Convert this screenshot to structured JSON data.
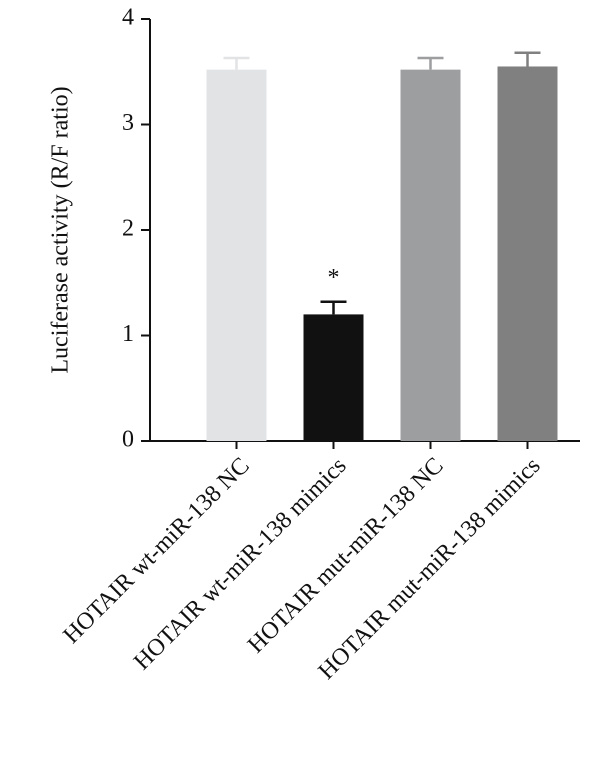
{
  "chart_data": {
    "type": "bar",
    "y_label": "Luciferase activity (R/F ratio)",
    "categories": [
      "HOTAIR wt-miR-138 NC",
      "HOTAIR wt-miR-138 mimics",
      "HOTAIR mut-miR-138 NC",
      "HOTAIR mut-miR-138 mimics"
    ],
    "values": [
      3.52,
      1.2,
      3.52,
      3.55
    ],
    "errors": [
      0.11,
      0.12,
      0.11,
      0.13
    ],
    "colors": [
      "#e2e3e5",
      "#111111",
      "#9d9ea0",
      "#808080"
    ],
    "annotations": [
      null,
      "*",
      null,
      null
    ],
    "ylim": [
      0,
      4
    ],
    "yticks": [
      0,
      1,
      2,
      3,
      4
    ],
    "grid": false
  }
}
